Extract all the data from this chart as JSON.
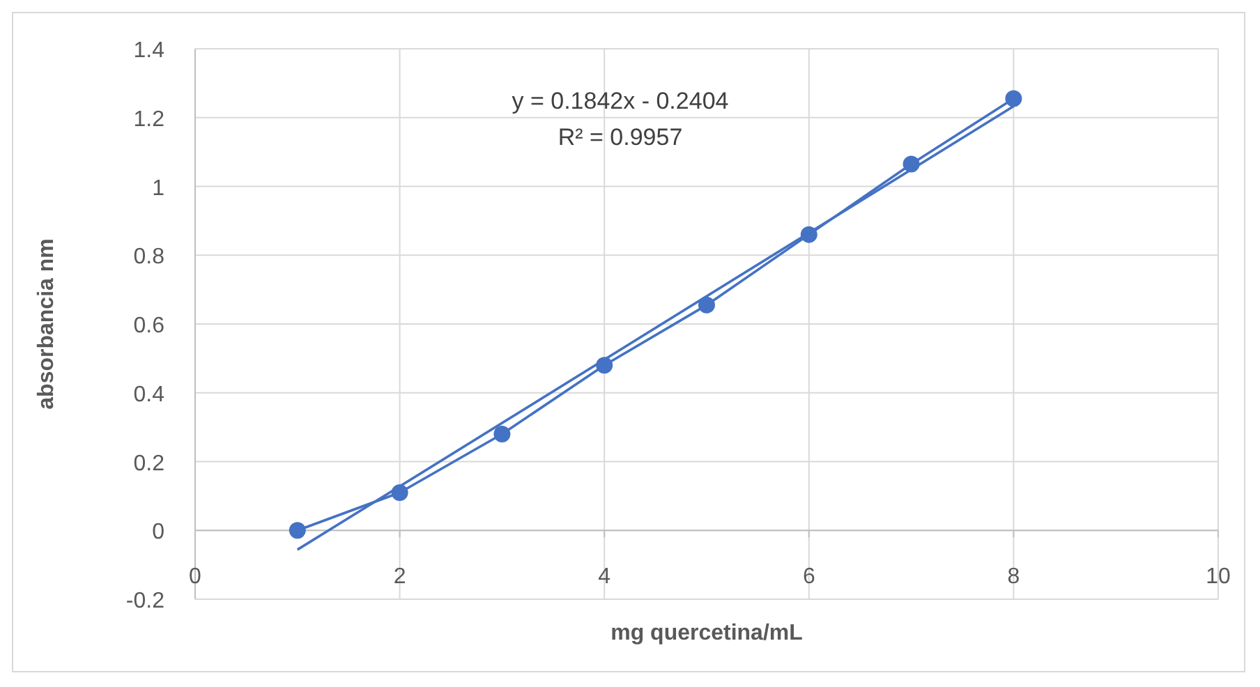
{
  "chart_data": {
    "type": "line",
    "xlabel": "mg quercetina/mL",
    "ylabel": "absorbancia nm",
    "xlim": [
      0,
      10
    ],
    "xticks": [
      0,
      2,
      4,
      6,
      8,
      10
    ],
    "ylim": [
      -0.2,
      1.4
    ],
    "yticks": [
      -0.2,
      0,
      0.2,
      0.4,
      0.6,
      0.8,
      1,
      1.2,
      1.4
    ],
    "grid": true,
    "series": [
      {
        "color": "#4472c4",
        "x": [
          1,
          2,
          3,
          4,
          5,
          6,
          7,
          8
        ],
        "values": [
          0,
          0.11,
          0.28,
          0.48,
          0.655,
          0.86,
          1.065,
          1.255
        ],
        "marker": "circle"
      },
      {
        "color": "#4472c4",
        "x": [
          1,
          8
        ],
        "values": [
          -0.056,
          1.233
        ],
        "marker": "none"
      }
    ],
    "annotations": [
      "y = 0.1842x - 0.2404",
      "R² = 0.9957"
    ]
  }
}
